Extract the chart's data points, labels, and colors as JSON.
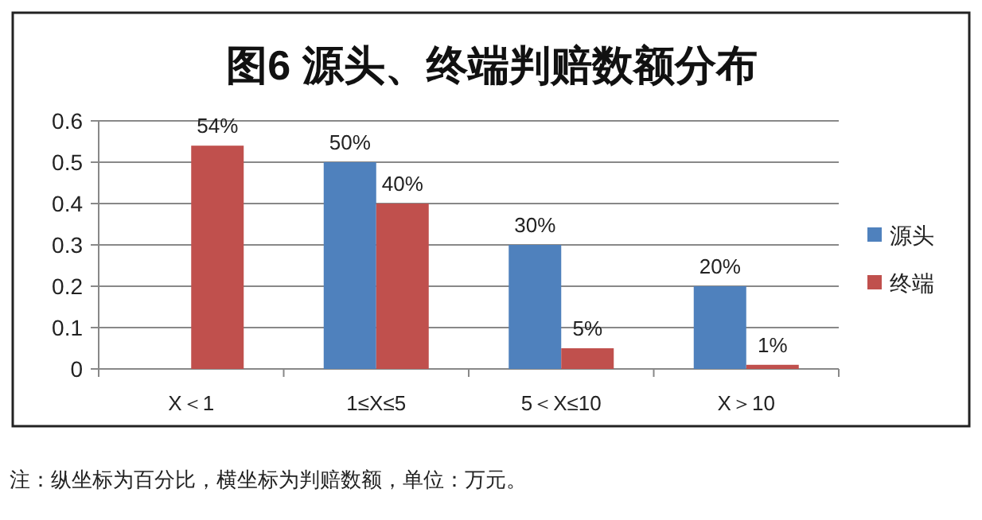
{
  "chart_data": {
    "type": "bar",
    "title": "图6 源头、终端判赔数额分布",
    "categories": [
      "X＜1",
      "1≤X≤5",
      "5＜X≤10",
      "X＞10"
    ],
    "series": [
      {
        "name": "源头",
        "color": "#4f81bd",
        "values": [
          null,
          0.5,
          0.3,
          0.2
        ],
        "value_labels": [
          null,
          "50%",
          "30%",
          "20%"
        ]
      },
      {
        "name": "终端",
        "color": "#c0504d",
        "values": [
          0.54,
          0.4,
          0.05,
          0.01
        ],
        "value_labels": [
          "54%",
          "40%",
          "5%",
          "1%"
        ]
      }
    ],
    "ylim": [
      0,
      0.6
    ],
    "yticks": [
      0,
      0.1,
      0.2,
      0.3,
      0.4,
      0.5,
      0.6
    ],
    "grid": "y",
    "legend": "right",
    "annotations": [
      "注：纵坐标为百分比，横坐标为判赔数额，单位：万元。"
    ]
  }
}
